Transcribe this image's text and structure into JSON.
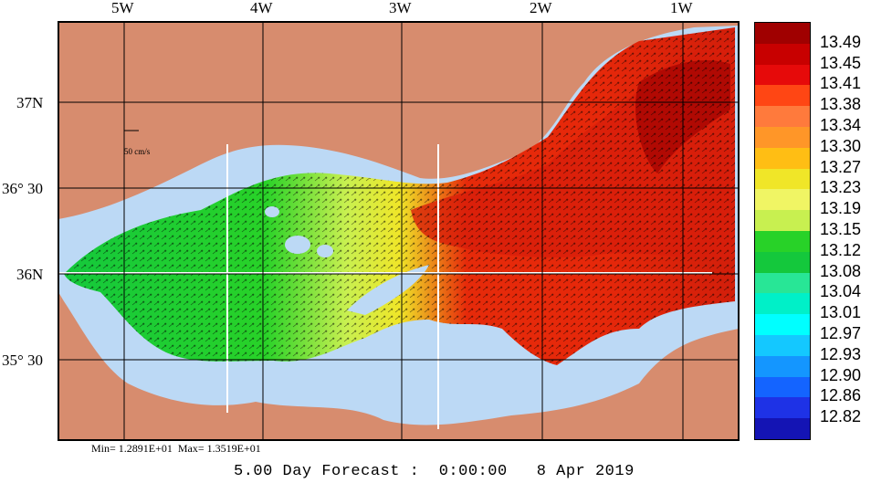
{
  "longitude_labels": [
    "5W",
    "4W",
    "3W",
    "2W",
    "1W"
  ],
  "latitude_labels": [
    "37N",
    "36° 30",
    "36N",
    "35° 30"
  ],
  "vector_scale_label": "50 cm/s",
  "min_max_text": "Min= 1.2891E+01  Max= 1.3519E+01",
  "forecast_text": "5.00 Day Forecast :  0:00:00   8 Apr 2019",
  "legend": {
    "levels": [
      "13.49",
      "13.45",
      "13.41",
      "13.38",
      "13.34",
      "13.30",
      "13.27",
      "13.23",
      "13.19",
      "13.15",
      "13.12",
      "13.08",
      "13.04",
      "13.01",
      "12.97",
      "12.93",
      "12.90",
      "12.86",
      "12.82"
    ],
    "colors": [
      "#a00000",
      "#c80000",
      "#e60a0a",
      "#ff4614",
      "#ff7a3c",
      "#ff9628",
      "#ffbe14",
      "#f0e628",
      "#f0f564",
      "#c8f050",
      "#28d228",
      "#14c83c",
      "#28e696",
      "#00f0c8",
      "#00ffff",
      "#14c8ff",
      "#1496ff",
      "#1464ff",
      "#1e32e6",
      "#1414b4"
    ]
  },
  "colors": {
    "land": "#d78c6e",
    "shelf": "#bcd9f5",
    "frame": "#000000"
  }
}
